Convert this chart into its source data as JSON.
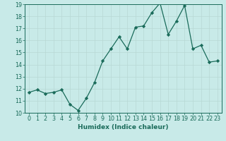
{
  "title": "",
  "xlabel": "Humidex (Indice chaleur)",
  "ylabel": "",
  "x": [
    0,
    1,
    2,
    3,
    4,
    5,
    6,
    7,
    8,
    9,
    10,
    11,
    12,
    13,
    14,
    15,
    16,
    17,
    18,
    19,
    20,
    21,
    22,
    23
  ],
  "y": [
    11.7,
    11.9,
    11.6,
    11.7,
    11.9,
    10.7,
    10.2,
    11.2,
    12.5,
    14.3,
    15.3,
    16.3,
    15.3,
    17.1,
    17.2,
    18.3,
    19.1,
    16.5,
    17.6,
    18.9,
    15.3,
    15.6,
    14.2,
    14.3
  ],
  "line_color": "#1a6b5a",
  "marker": "D",
  "marker_size": 2.2,
  "bg_color": "#c8eae8",
  "grid_color": "#b8d8d4",
  "xlim": [
    -0.5,
    23.5
  ],
  "ylim": [
    10,
    19
  ],
  "yticks": [
    10,
    11,
    12,
    13,
    14,
    15,
    16,
    17,
    18,
    19
  ],
  "xticks": [
    0,
    1,
    2,
    3,
    4,
    5,
    6,
    7,
    8,
    9,
    10,
    11,
    12,
    13,
    14,
    15,
    16,
    17,
    18,
    19,
    20,
    21,
    22,
    23
  ],
  "tick_color": "#1a6b5a",
  "label_fontsize": 6.5,
  "tick_fontsize": 5.8,
  "linewidth": 0.9
}
